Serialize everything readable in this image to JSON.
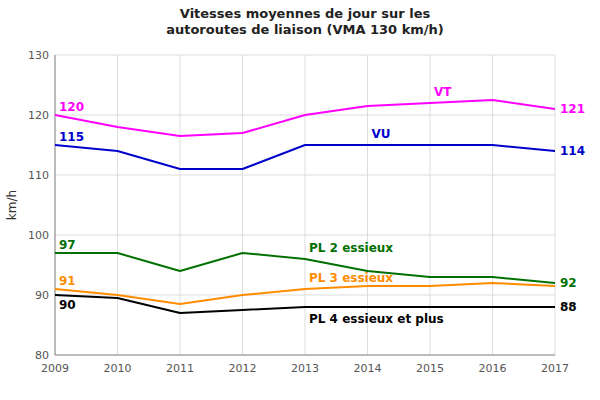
{
  "chart_data": {
    "type": "line",
    "title": "Vitesses moyennes de jour sur les\nautoroutes de liaison (VMA 130 km/h)",
    "y_label": "km/h",
    "x": [
      2009,
      2010,
      2011,
      2012,
      2013,
      2014,
      2015,
      2016,
      2017
    ],
    "series": [
      {
        "name": "VT",
        "color": "#ff00ff",
        "values": [
          120,
          118,
          116.5,
          117,
          120,
          121.5,
          122,
          122.5,
          121
        ]
      },
      {
        "name": "VU",
        "color": "#0000cc",
        "values": [
          115,
          114,
          111,
          111,
          115,
          115,
          115,
          115,
          114
        ]
      },
      {
        "name": "PL 2 essieux",
        "color": "#007000",
        "values": [
          97,
          97,
          94,
          97,
          96,
          94,
          93,
          93,
          92
        ]
      },
      {
        "name": "PL 3 essieux",
        "color": "#ff8c00",
        "values": [
          91,
          90,
          88.5,
          90,
          91,
          91.5,
          91.5,
          92,
          91.5
        ]
      },
      {
        "name": "PL 4 essieux et plus",
        "color": "#000000",
        "values": [
          90,
          89.5,
          87,
          87.5,
          88,
          88,
          88,
          88,
          88
        ]
      }
    ],
    "annotations": [
      {
        "text": "120",
        "x": 2009,
        "y": 120,
        "color": "#ff00ff"
      },
      {
        "text": "115",
        "x": 2009,
        "y": 115,
        "color": "#0000cc"
      },
      {
        "text": "97",
        "x": 2009,
        "y": 97,
        "color": "#007000"
      },
      {
        "text": "91",
        "x": 2009,
        "y": 91,
        "color": "#ff8c00"
      },
      {
        "text": "90",
        "x": 2009,
        "y": 90,
        "color": "#000000"
      },
      {
        "text": "121",
        "x": 2017,
        "y": 121,
        "color": "#ff00ff"
      },
      {
        "text": "114",
        "x": 2017,
        "y": 114,
        "color": "#0000cc"
      },
      {
        "text": "92",
        "x": 2017,
        "y": 92,
        "color": "#007000"
      },
      {
        "text": "88",
        "x": 2017,
        "y": 88,
        "color": "#000000"
      }
    ],
    "xlim": [
      2009,
      2017
    ],
    "xticks": [
      2009,
      2010,
      2011,
      2012,
      2013,
      2014,
      2015,
      2016,
      2017
    ],
    "ylim": [
      80,
      130
    ],
    "yticks": [
      80,
      90,
      100,
      110,
      120,
      130
    ],
    "grid": true
  }
}
